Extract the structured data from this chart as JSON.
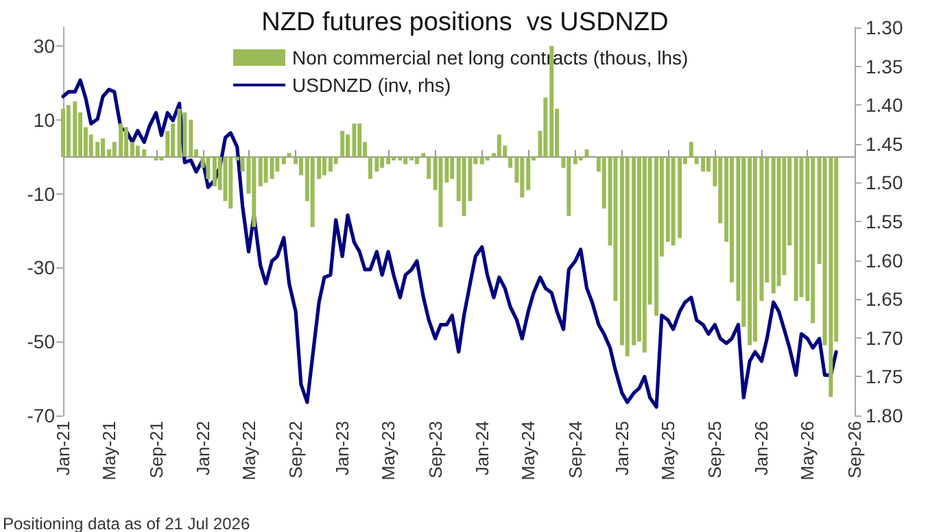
{
  "chart_data": {
    "type": "bar",
    "title": "NZD futures positions  vs USDNZD",
    "x": [
      "2021-01-01",
      "2021-01-15",
      "2021-02-01",
      "2021-02-15",
      "2021-03-01",
      "2021-03-15",
      "2021-04-01",
      "2021-04-15",
      "2021-05-01",
      "2021-05-15",
      "2021-06-01",
      "2021-06-15",
      "2021-07-01",
      "2021-07-15",
      "2021-08-01",
      "2021-08-15",
      "2021-09-01",
      "2021-09-15",
      "2021-10-01",
      "2021-10-15",
      "2021-11-01",
      "2021-11-15",
      "2021-12-01",
      "2021-12-15",
      "2022-01-01",
      "2022-01-15",
      "2022-02-01",
      "2022-02-15",
      "2022-03-01",
      "2022-03-15",
      "2022-04-01",
      "2022-04-15",
      "2022-05-01",
      "2022-05-15",
      "2022-06-01",
      "2022-06-15",
      "2022-07-01",
      "2022-07-15",
      "2022-08-01",
      "2022-08-15",
      "2022-09-01",
      "2022-09-15",
      "2022-10-01",
      "2022-10-15",
      "2022-11-01",
      "2022-11-15",
      "2022-12-01",
      "2022-12-15",
      "2023-01-01",
      "2023-01-15",
      "2023-02-01",
      "2023-02-15",
      "2023-03-01",
      "2023-03-15",
      "2023-04-01",
      "2023-04-15",
      "2023-05-01",
      "2023-05-15",
      "2023-06-01",
      "2023-06-15",
      "2023-07-01",
      "2023-07-15",
      "2023-08-01",
      "2023-08-15",
      "2023-09-01",
      "2023-09-15",
      "2023-10-01",
      "2023-10-15",
      "2023-11-01",
      "2023-11-15",
      "2023-12-01",
      "2023-12-15",
      "2024-01-01",
      "2024-01-15",
      "2024-02-01",
      "2024-02-15",
      "2024-03-01",
      "2024-03-15",
      "2024-04-01",
      "2024-04-15",
      "2024-05-01",
      "2024-05-15",
      "2024-06-01",
      "2024-06-15",
      "2024-07-01",
      "2024-07-15",
      "2024-08-01",
      "2024-08-15",
      "2024-09-01",
      "2024-09-15",
      "2024-10-01",
      "2024-10-15",
      "2024-11-01",
      "2024-11-15",
      "2024-12-01",
      "2024-12-15",
      "2025-01-01",
      "2025-01-15",
      "2025-02-01",
      "2025-02-15",
      "2025-03-01",
      "2025-03-15",
      "2025-04-01",
      "2025-04-15",
      "2025-05-01",
      "2025-05-15",
      "2025-06-01",
      "2025-06-15",
      "2025-07-01",
      "2025-07-15",
      "2025-08-01",
      "2025-08-15",
      "2025-09-01",
      "2025-09-15",
      "2025-10-01",
      "2025-10-15",
      "2025-11-01",
      "2025-11-15",
      "2025-12-01",
      "2025-12-15",
      "2026-01-01",
      "2026-01-15",
      "2026-02-01",
      "2026-02-15",
      "2026-03-01",
      "2026-03-15",
      "2026-04-01",
      "2026-04-15",
      "2026-05-01",
      "2026-05-15",
      "2026-06-01",
      "2026-06-15",
      "2026-07-01",
      "2026-07-15"
    ],
    "series": [
      {
        "name": "Non commercial net long contracts (thous, lhs)",
        "color": "#9bbb59",
        "values": [
          13,
          14,
          15,
          12,
          8,
          6,
          4,
          5,
          2,
          4,
          9,
          8,
          4,
          3,
          2,
          0,
          -1,
          -1,
          7,
          9,
          13,
          12,
          10,
          2,
          -3,
          -6,
          -8,
          -9,
          -12,
          -14,
          -1,
          -4,
          -10,
          -19,
          -8,
          -7,
          -6,
          -4,
          -2,
          1,
          -2,
          -5,
          -12,
          -19,
          -6,
          -5,
          -4,
          -2,
          7,
          6,
          9,
          9,
          4,
          -6,
          -4,
          -3,
          -2,
          -1,
          -1,
          -2,
          -1,
          -2,
          1,
          -6,
          -9,
          -19,
          -7,
          -6,
          -12,
          -16,
          -12,
          -2,
          -2,
          -1,
          1,
          6,
          3,
          -3,
          -7,
          -11,
          -9,
          -1,
          7,
          16,
          30,
          13,
          -3,
          -16,
          -2,
          -1,
          2,
          0,
          -4,
          -14,
          -24,
          -39,
          -51,
          -54,
          -51,
          -50,
          -53,
          -40,
          -43,
          -27,
          -23,
          -24,
          -22,
          -2,
          4,
          -2,
          -4,
          -4,
          -8,
          -18,
          -23,
          -34,
          -39,
          -46,
          -51,
          -50,
          -39,
          -34,
          -37,
          -35,
          -32,
          -24,
          -39,
          -38,
          -39,
          -45,
          -29,
          -51,
          -65,
          -50
        ]
      },
      {
        "name": "USDNZD (inv, rhs)",
        "type": "line",
        "axis": "y2",
        "color": "#000080",
        "values": [
          1.389,
          1.383,
          1.383,
          1.368,
          1.391,
          1.424,
          1.418,
          1.389,
          1.38,
          1.383,
          1.43,
          1.433,
          1.448,
          1.433,
          1.448,
          1.427,
          1.41,
          1.439,
          1.41,
          1.42,
          1.398,
          1.474,
          1.471,
          1.486,
          1.471,
          1.506,
          1.497,
          1.48,
          1.442,
          1.436,
          1.454,
          1.53,
          1.589,
          1.542,
          1.607,
          1.63,
          1.601,
          1.595,
          1.571,
          1.63,
          1.666,
          1.76,
          1.783,
          1.725,
          1.654,
          1.622,
          1.619,
          1.548,
          1.595,
          1.542,
          1.577,
          1.589,
          1.612,
          1.612,
          1.589,
          1.619,
          1.589,
          1.619,
          1.648,
          1.619,
          1.612,
          1.601,
          1.648,
          1.677,
          1.701,
          1.683,
          1.683,
          1.671,
          1.718,
          1.671,
          1.63,
          1.595,
          1.583,
          1.619,
          1.648,
          1.622,
          1.636,
          1.66,
          1.677,
          1.701,
          1.666,
          1.642,
          1.622,
          1.636,
          1.642,
          1.666,
          1.689,
          1.612,
          1.601,
          1.586,
          1.636,
          1.654,
          1.683,
          1.695,
          1.713,
          1.742,
          1.771,
          1.783,
          1.771,
          1.765,
          1.75,
          1.777,
          1.789,
          1.671,
          1.677,
          1.689,
          1.666,
          1.654,
          1.648,
          1.677,
          1.683,
          1.695,
          1.683,
          1.701,
          1.707,
          1.701,
          1.683,
          1.777,
          1.73,
          1.718,
          1.73,
          1.701,
          1.654,
          1.666,
          1.689,
          1.713,
          1.748,
          1.695,
          1.701,
          1.713,
          1.701,
          1.748,
          1.748,
          1.718
        ]
      }
    ],
    "xlim": [
      "2021-01-01",
      "2026-09-01"
    ],
    "xticks": [
      {
        "value": "2021-01-01",
        "label": "Jan-21"
      },
      {
        "value": "2021-05-01",
        "label": "May-21"
      },
      {
        "value": "2021-09-01",
        "label": "Sep-21"
      },
      {
        "value": "2022-01-01",
        "label": "Jan-22"
      },
      {
        "value": "2022-05-01",
        "label": "May-22"
      },
      {
        "value": "2022-09-01",
        "label": "Sep-22"
      },
      {
        "value": "2023-01-01",
        "label": "Jan-23"
      },
      {
        "value": "2023-05-01",
        "label": "May-23"
      },
      {
        "value": "2023-09-01",
        "label": "Sep-23"
      },
      {
        "value": "2024-01-01",
        "label": "Jan-24"
      },
      {
        "value": "2024-05-01",
        "label": "May-24"
      },
      {
        "value": "2024-09-01",
        "label": "Sep-24"
      },
      {
        "value": "2025-01-01",
        "label": "Jan-25"
      },
      {
        "value": "2025-05-01",
        "label": "May-25"
      },
      {
        "value": "2025-09-01",
        "label": "Sep-25"
      },
      {
        "value": "2026-01-01",
        "label": "Jan-26"
      },
      {
        "value": "2026-05-01",
        "label": "May-26"
      },
      {
        "value": "2026-09-01",
        "label": "Sep-26"
      }
    ],
    "ylim": [
      -70,
      35
    ],
    "yticks": [
      -70,
      -50,
      -30,
      -10,
      10,
      30
    ],
    "y2lim": [
      1.8,
      1.3
    ],
    "y2ticks": [
      {
        "value": 1.8,
        "label": "1.80"
      },
      {
        "value": 1.75,
        "label": "1.75"
      },
      {
        "value": 1.7,
        "label": "1.70"
      },
      {
        "value": 1.65,
        "label": "1.65"
      },
      {
        "value": 1.6,
        "label": "1.60"
      },
      {
        "value": 1.55,
        "label": "1.55"
      },
      {
        "value": 1.5,
        "label": "1.50"
      },
      {
        "value": 1.45,
        "label": "1.45"
      },
      {
        "value": 1.4,
        "label": "1.40"
      },
      {
        "value": 1.35,
        "label": "1.35"
      },
      {
        "value": 1.3,
        "label": "1.30"
      }
    ],
    "grid": false,
    "legend": "top",
    "line_style": "solid",
    "marker": "none",
    "annotations": [
      "Positioning data as of 21 Jul 2026"
    ]
  }
}
